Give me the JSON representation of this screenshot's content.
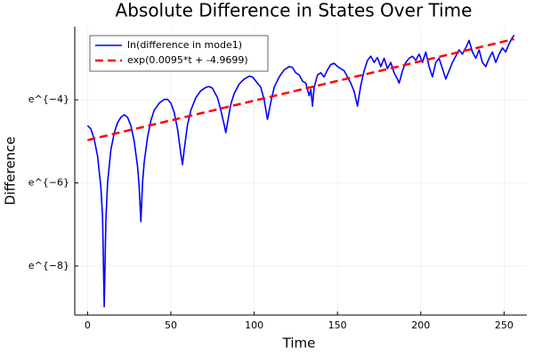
{
  "chart_data": {
    "type": "line",
    "title": "Absolute Difference in States Over Time",
    "x_label": "Time",
    "y_label": "Difference",
    "xlim": [
      -7.68,
      263.68
    ],
    "ylim": [
      -9.18,
      -2.24
    ],
    "xticks": [
      0,
      50,
      100,
      150,
      200,
      250
    ],
    "yticks": [
      {
        "value": -8,
        "label": "e^{−8}"
      },
      {
        "value": -6,
        "label": "e^{−6}"
      },
      {
        "value": -4,
        "label": "e^{−4}"
      }
    ],
    "grid": true,
    "legend": "top-left",
    "series": [
      {
        "name": "ln(difference in mode1)",
        "color": "#0000ff",
        "dash": false,
        "x": [
          0,
          2,
          4,
          6,
          8,
          9,
          10,
          11,
          12,
          14,
          16,
          18,
          20,
          22,
          24,
          26,
          28,
          30,
          31,
          32,
          33,
          34,
          36,
          38,
          40,
          43,
          46,
          48,
          50,
          52,
          54,
          56,
          57,
          58,
          60,
          62,
          65,
          68,
          71,
          73,
          75,
          78,
          80,
          82,
          83,
          84,
          86,
          88,
          91,
          94,
          97,
          99,
          101,
          102,
          104,
          105,
          106,
          108,
          110,
          112,
          115,
          118,
          121,
          123,
          125,
          127,
          129,
          131,
          133,
          134,
          135,
          136,
          138,
          140,
          142,
          144,
          146,
          148,
          150,
          152,
          154,
          156,
          158,
          160,
          162,
          164,
          166,
          168,
          170,
          172,
          174,
          176,
          178,
          180,
          182,
          184,
          186,
          187,
          189,
          191,
          193,
          195,
          197,
          199,
          201,
          203,
          205,
          207,
          209,
          211,
          213,
          215,
          217,
          219,
          221,
          223,
          225,
          227,
          229,
          231,
          233,
          235,
          237,
          239,
          241,
          243,
          245,
          247,
          249,
          251,
          253,
          255,
          256
        ],
        "values": [
          -4.62,
          -4.7,
          -4.95,
          -5.35,
          -6.1,
          -6.8,
          -8.98,
          -6.9,
          -6.0,
          -5.2,
          -4.8,
          -4.55,
          -4.42,
          -4.36,
          -4.42,
          -4.62,
          -5.0,
          -5.6,
          -6.1,
          -6.93,
          -6.0,
          -5.5,
          -4.9,
          -4.5,
          -4.25,
          -4.08,
          -3.99,
          -3.99,
          -4.08,
          -4.3,
          -4.7,
          -5.3,
          -5.56,
          -5.2,
          -4.6,
          -4.25,
          -3.95,
          -3.78,
          -3.7,
          -3.68,
          -3.72,
          -3.95,
          -4.25,
          -4.6,
          -4.79,
          -4.55,
          -4.1,
          -3.85,
          -3.62,
          -3.5,
          -3.43,
          -3.45,
          -3.55,
          -3.6,
          -3.7,
          -3.85,
          -4.0,
          -4.47,
          -4.05,
          -3.7,
          -3.45,
          -3.28,
          -3.2,
          -3.22,
          -3.35,
          -3.4,
          -3.55,
          -3.6,
          -3.9,
          -3.75,
          -4.15,
          -3.7,
          -3.4,
          -3.35,
          -3.45,
          -3.28,
          -3.15,
          -3.12,
          -3.2,
          -3.25,
          -3.3,
          -3.45,
          -3.6,
          -3.8,
          -4.15,
          -3.65,
          -3.3,
          -3.05,
          -2.95,
          -3.1,
          -2.98,
          -3.2,
          -3.0,
          -3.25,
          -3.1,
          -3.35,
          -3.5,
          -3.6,
          -3.3,
          -3.1,
          -3.0,
          -2.95,
          -3.05,
          -2.9,
          -3.1,
          -2.85,
          -3.2,
          -3.45,
          -3.1,
          -3.0,
          -3.25,
          -3.5,
          -3.3,
          -3.1,
          -2.95,
          -2.8,
          -2.9,
          -2.75,
          -2.57,
          -2.85,
          -3.0,
          -2.8,
          -3.1,
          -3.2,
          -3.0,
          -2.85,
          -3.1,
          -2.9,
          -2.75,
          -2.85,
          -2.65,
          -2.5,
          -2.44
        ]
      },
      {
        "name": "exp(0.0095*t + -4.9699)",
        "color": "#ff0000",
        "dash": true,
        "x": [
          0,
          256
        ],
        "values": [
          -4.9699,
          -2.5379
        ]
      }
    ]
  }
}
